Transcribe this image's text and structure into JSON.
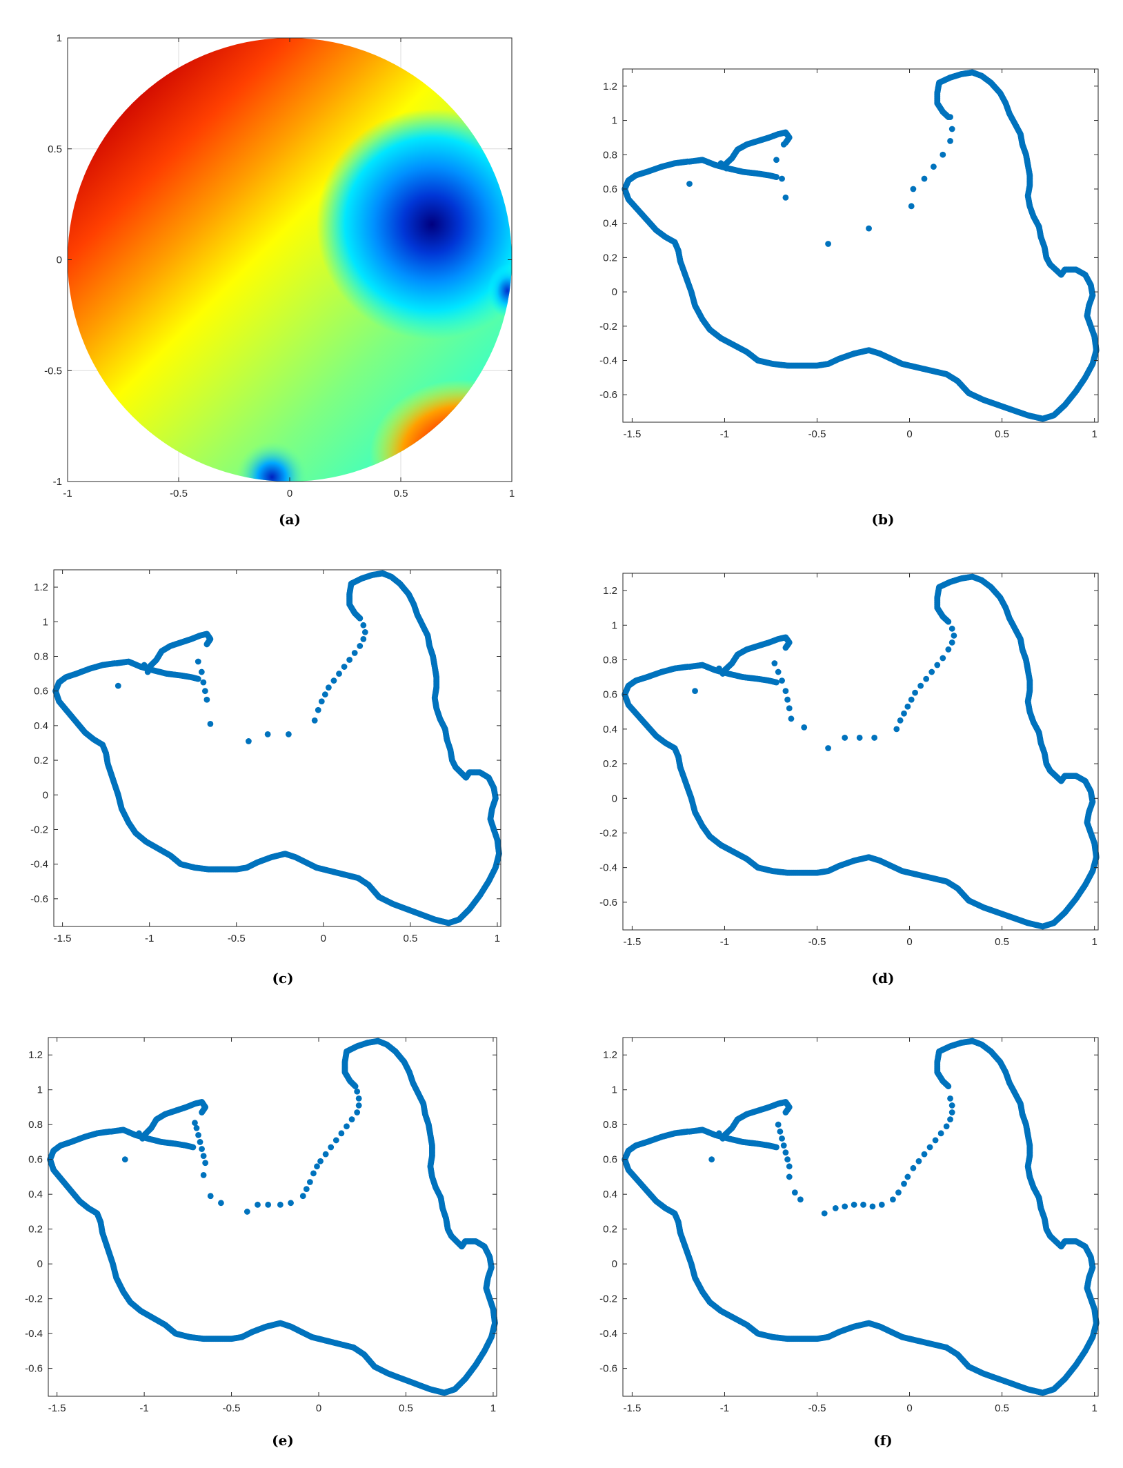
{
  "figure": {
    "panels": [
      "(a)",
      "(b)",
      "(c)",
      "(d)",
      "(e)",
      "(f)"
    ]
  },
  "colors": {
    "marker": "#0072bd",
    "frame": "#262626",
    "grid": "#dcdcdc"
  },
  "chart_data": [
    {
      "panel": "(a)",
      "type": "heatmap",
      "title": "",
      "xlabel": "",
      "ylabel": "",
      "domain": "unit disk",
      "colormap": "jet",
      "xlim": [
        -1,
        1
      ],
      "ylim": [
        -1,
        1
      ],
      "x_ticks": [
        -1,
        -0.5,
        0,
        0.5,
        1
      ],
      "y_ticks": [
        -1,
        -0.5,
        0,
        0.5,
        1
      ],
      "x_tick_labels": [
        "-1",
        "-0.5",
        "0",
        "0.5",
        "1"
      ],
      "y_tick_labels": [
        "-1",
        "-0.5",
        "0",
        "0.5",
        "1"
      ],
      "grid": true,
      "minimum": [
        0.64,
        0.16
      ],
      "boundary_features": [
        [
          -0.08,
          -0.98
        ],
        [
          0.98,
          -0.14
        ]
      ]
    },
    {
      "panel": "(b)",
      "type": "scatter",
      "title": "",
      "xlabel": "",
      "ylabel": "",
      "xlim": [
        -1.55,
        1.02
      ],
      "ylim": [
        -0.76,
        1.3
      ],
      "x_ticks": [
        -1.5,
        -1,
        -0.5,
        0,
        0.5,
        1
      ],
      "y_ticks": [
        -0.6,
        -0.4,
        -0.2,
        0,
        0.2,
        0.4,
        0.6,
        0.8,
        1,
        1.2
      ],
      "x_tick_labels": [
        "-1.5",
        "-1",
        "-0.5",
        "0",
        "0.5",
        "1"
      ],
      "y_tick_labels": [
        "-0.6",
        "-0.4",
        "-0.2",
        "0",
        "0.2",
        "0.4",
        "0.6",
        "0.8",
        "1",
        "1.2"
      ],
      "grid": false,
      "inner_points": [
        [
          -1.19,
          0.63
        ],
        [
          -1.02,
          0.75
        ],
        [
          -0.99,
          0.72
        ],
        [
          -0.72,
          0.77
        ],
        [
          -0.69,
          0.66
        ],
        [
          -0.67,
          0.55
        ],
        [
          -0.68,
          0.86
        ],
        [
          -0.44,
          0.28
        ],
        [
          -0.22,
          0.37
        ],
        [
          0.01,
          0.5
        ],
        [
          0.02,
          0.6
        ],
        [
          0.08,
          0.66
        ],
        [
          0.13,
          0.73
        ],
        [
          0.18,
          0.8
        ],
        [
          0.22,
          0.88
        ],
        [
          0.23,
          0.95
        ],
        [
          0.22,
          1.02
        ]
      ]
    },
    {
      "panel": "(c)",
      "type": "scatter",
      "title": "",
      "xlabel": "",
      "ylabel": "",
      "xlim": [
        -1.55,
        1.02
      ],
      "ylim": [
        -0.76,
        1.3
      ],
      "x_ticks": [
        -1.5,
        -1,
        -0.5,
        0,
        0.5,
        1
      ],
      "y_ticks": [
        -0.6,
        -0.4,
        -0.2,
        0,
        0.2,
        0.4,
        0.6,
        0.8,
        1,
        1.2
      ],
      "x_tick_labels": [
        "-1.5",
        "-1",
        "-0.5",
        "0",
        "0.5",
        "1"
      ],
      "y_tick_labels": [
        "-0.6",
        "-0.4",
        "-0.2",
        "0",
        "0.2",
        "0.4",
        "0.6",
        "0.8",
        "1",
        "1.2"
      ],
      "grid": false,
      "inner_points": [
        [
          -1.18,
          0.63
        ],
        [
          -1.03,
          0.75
        ],
        [
          -1.01,
          0.71
        ],
        [
          -0.72,
          0.77
        ],
        [
          -0.7,
          0.71
        ],
        [
          -0.69,
          0.65
        ],
        [
          -0.68,
          0.6
        ],
        [
          -0.67,
          0.55
        ],
        [
          -0.65,
          0.41
        ],
        [
          -0.43,
          0.31
        ],
        [
          -0.32,
          0.35
        ],
        [
          -0.2,
          0.35
        ],
        [
          -0.05,
          0.43
        ],
        [
          -0.03,
          0.49
        ],
        [
          -0.01,
          0.54
        ],
        [
          0.01,
          0.58
        ],
        [
          0.03,
          0.62
        ],
        [
          0.06,
          0.66
        ],
        [
          0.09,
          0.7
        ],
        [
          0.12,
          0.74
        ],
        [
          0.15,
          0.78
        ],
        [
          0.18,
          0.82
        ],
        [
          0.21,
          0.86
        ],
        [
          0.23,
          0.9
        ],
        [
          0.24,
          0.94
        ],
        [
          0.23,
          0.98
        ],
        [
          0.21,
          1.02
        ]
      ]
    },
    {
      "panel": "(d)",
      "type": "scatter",
      "title": "",
      "xlabel": "",
      "ylabel": "",
      "xlim": [
        -1.55,
        1.02
      ],
      "ylim": [
        -0.76,
        1.3
      ],
      "x_ticks": [
        -1.5,
        -1,
        -0.5,
        0,
        0.5,
        1
      ],
      "y_ticks": [
        -0.6,
        -0.4,
        -0.2,
        0,
        0.2,
        0.4,
        0.6,
        0.8,
        1,
        1.2
      ],
      "x_tick_labels": [
        "-1.5",
        "-1",
        "-0.5",
        "0",
        "0.5",
        "1"
      ],
      "y_tick_labels": [
        "-0.6",
        "-0.4",
        "-0.2",
        "0",
        "0.2",
        "0.4",
        "0.6",
        "0.8",
        "1",
        "1.2"
      ],
      "grid": false,
      "inner_points": [
        [
          -1.16,
          0.62
        ],
        [
          -1.03,
          0.75
        ],
        [
          -1.01,
          0.72
        ],
        [
          -0.73,
          0.78
        ],
        [
          -0.71,
          0.73
        ],
        [
          -0.69,
          0.68
        ],
        [
          -0.67,
          0.62
        ],
        [
          -0.66,
          0.57
        ],
        [
          -0.65,
          0.52
        ],
        [
          -0.64,
          0.46
        ],
        [
          -0.57,
          0.41
        ],
        [
          -0.44,
          0.29
        ],
        [
          -0.35,
          0.35
        ],
        [
          -0.27,
          0.35
        ],
        [
          -0.19,
          0.35
        ],
        [
          -0.07,
          0.4
        ],
        [
          -0.05,
          0.45
        ],
        [
          -0.03,
          0.49
        ],
        [
          -0.01,
          0.53
        ],
        [
          0.01,
          0.57
        ],
        [
          0.03,
          0.61
        ],
        [
          0.06,
          0.65
        ],
        [
          0.09,
          0.69
        ],
        [
          0.12,
          0.73
        ],
        [
          0.15,
          0.77
        ],
        [
          0.18,
          0.81
        ],
        [
          0.21,
          0.86
        ],
        [
          0.23,
          0.9
        ],
        [
          0.24,
          0.94
        ],
        [
          0.23,
          0.98
        ]
      ]
    },
    {
      "panel": "(e)",
      "type": "scatter",
      "title": "",
      "xlabel": "",
      "ylabel": "",
      "xlim": [
        -1.55,
        1.02
      ],
      "ylim": [
        -0.76,
        1.3
      ],
      "x_ticks": [
        -1.5,
        -1,
        -0.5,
        0,
        0.5,
        1
      ],
      "y_ticks": [
        -0.6,
        -0.4,
        -0.2,
        0,
        0.2,
        0.4,
        0.6,
        0.8,
        1,
        1.2
      ],
      "x_tick_labels": [
        "-1.5",
        "-1",
        "-0.5",
        "0",
        "0.5",
        "1"
      ],
      "y_tick_labels": [
        "-0.6",
        "-0.4",
        "-0.2",
        "0",
        "0.2",
        "0.4",
        "0.6",
        "0.8",
        "1",
        "1.2"
      ],
      "grid": false,
      "inner_points": [
        [
          -1.11,
          0.6
        ],
        [
          -1.03,
          0.75
        ],
        [
          -1.01,
          0.72
        ],
        [
          -0.71,
          0.81
        ],
        [
          -0.7,
          0.78
        ],
        [
          -0.69,
          0.74
        ],
        [
          -0.68,
          0.7
        ],
        [
          -0.67,
          0.66
        ],
        [
          -0.66,
          0.62
        ],
        [
          -0.65,
          0.58
        ],
        [
          -0.66,
          0.51
        ],
        [
          -0.62,
          0.39
        ],
        [
          -0.56,
          0.35
        ],
        [
          -0.41,
          0.3
        ],
        [
          -0.35,
          0.34
        ],
        [
          -0.29,
          0.34
        ],
        [
          -0.22,
          0.34
        ],
        [
          -0.16,
          0.35
        ],
        [
          -0.09,
          0.39
        ],
        [
          -0.07,
          0.43
        ],
        [
          -0.05,
          0.47
        ],
        [
          -0.03,
          0.52
        ],
        [
          -0.01,
          0.56
        ],
        [
          0.01,
          0.59
        ],
        [
          0.04,
          0.63
        ],
        [
          0.07,
          0.67
        ],
        [
          0.1,
          0.71
        ],
        [
          0.13,
          0.75
        ],
        [
          0.16,
          0.79
        ],
        [
          0.19,
          0.83
        ],
        [
          0.22,
          0.87
        ],
        [
          0.23,
          0.91
        ],
        [
          0.23,
          0.95
        ],
        [
          0.22,
          0.99
        ]
      ]
    },
    {
      "panel": "(f)",
      "type": "scatter",
      "title": "",
      "xlabel": "",
      "ylabel": "",
      "xlim": [
        -1.55,
        1.02
      ],
      "ylim": [
        -0.76,
        1.3
      ],
      "x_ticks": [
        -1.5,
        -1,
        -0.5,
        0,
        0.5,
        1
      ],
      "y_ticks": [
        -0.6,
        -0.4,
        -0.2,
        0,
        0.2,
        0.4,
        0.6,
        0.8,
        1,
        1.2
      ],
      "x_tick_labels": [
        "-1.5",
        "-1",
        "-0.5",
        "0",
        "0.5",
        "1"
      ],
      "y_tick_labels": [
        "-0.6",
        "-0.4",
        "-0.2",
        "0",
        "0.2",
        "0.4",
        "0.6",
        "0.8",
        "1",
        "1.2"
      ],
      "grid": false,
      "inner_points": [
        [
          -1.07,
          0.6
        ],
        [
          -1.03,
          0.75
        ],
        [
          -1.01,
          0.72
        ],
        [
          -0.71,
          0.8
        ],
        [
          -0.7,
          0.76
        ],
        [
          -0.69,
          0.72
        ],
        [
          -0.68,
          0.68
        ],
        [
          -0.67,
          0.64
        ],
        [
          -0.66,
          0.6
        ],
        [
          -0.65,
          0.56
        ],
        [
          -0.65,
          0.5
        ],
        [
          -0.62,
          0.41
        ],
        [
          -0.59,
          0.37
        ],
        [
          -0.46,
          0.29
        ],
        [
          -0.4,
          0.32
        ],
        [
          -0.35,
          0.33
        ],
        [
          -0.3,
          0.34
        ],
        [
          -0.25,
          0.34
        ],
        [
          -0.2,
          0.33
        ],
        [
          -0.15,
          0.34
        ],
        [
          -0.09,
          0.37
        ],
        [
          -0.06,
          0.41
        ],
        [
          -0.03,
          0.46
        ],
        [
          -0.01,
          0.5
        ],
        [
          0.02,
          0.55
        ],
        [
          0.05,
          0.59
        ],
        [
          0.08,
          0.63
        ],
        [
          0.11,
          0.67
        ],
        [
          0.14,
          0.71
        ],
        [
          0.17,
          0.75
        ],
        [
          0.2,
          0.79
        ],
        [
          0.22,
          0.83
        ],
        [
          0.23,
          0.87
        ],
        [
          0.23,
          0.91
        ],
        [
          0.22,
          0.95
        ]
      ]
    }
  ],
  "outline": {
    "left_arm": [
      [
        -1.19,
        0.76
      ],
      [
        -1.12,
        0.77
      ],
      [
        -1.05,
        0.74
      ],
      [
        -0.98,
        0.72
      ],
      [
        -0.9,
        0.7
      ],
      [
        -0.82,
        0.69
      ],
      [
        -0.76,
        0.68
      ],
      [
        -0.72,
        0.67
      ]
    ],
    "middle_arm": [
      [
        -1.0,
        0.74
      ],
      [
        -0.96,
        0.78
      ],
      [
        -0.93,
        0.83
      ],
      [
        -0.88,
        0.86
      ],
      [
        -0.82,
        0.88
      ],
      [
        -0.76,
        0.9
      ],
      [
        -0.71,
        0.92
      ],
      [
        -0.67,
        0.93
      ],
      [
        -0.65,
        0.9
      ],
      [
        -0.67,
        0.87
      ]
    ],
    "main_loop": [
      [
        -1.2,
        0.76
      ],
      [
        -1.27,
        0.75
      ],
      [
        -1.34,
        0.73
      ],
      [
        -1.42,
        0.7
      ],
      [
        -1.48,
        0.68
      ],
      [
        -1.52,
        0.65
      ],
      [
        -1.54,
        0.6
      ],
      [
        -1.52,
        0.54
      ],
      [
        -1.47,
        0.48
      ],
      [
        -1.42,
        0.42
      ],
      [
        -1.37,
        0.36
      ],
      [
        -1.32,
        0.32
      ],
      [
        -1.27,
        0.29
      ],
      [
        -1.25,
        0.24
      ],
      [
        -1.24,
        0.18
      ],
      [
        -1.22,
        0.12
      ],
      [
        -1.2,
        0.06
      ],
      [
        -1.18,
        0.0
      ],
      [
        -1.16,
        -0.08
      ],
      [
        -1.12,
        -0.16
      ],
      [
        -1.08,
        -0.22
      ],
      [
        -1.02,
        -0.27
      ],
      [
        -0.95,
        -0.31
      ],
      [
        -0.88,
        -0.35
      ],
      [
        -0.82,
        -0.4
      ],
      [
        -0.74,
        -0.42
      ],
      [
        -0.66,
        -0.43
      ],
      [
        -0.58,
        -0.43
      ],
      [
        -0.5,
        -0.43
      ],
      [
        -0.44,
        -0.42
      ],
      [
        -0.38,
        -0.39
      ],
      [
        -0.3,
        -0.36
      ],
      [
        -0.22,
        -0.34
      ],
      [
        -0.16,
        -0.36
      ],
      [
        -0.1,
        -0.39
      ],
      [
        -0.04,
        -0.42
      ],
      [
        0.04,
        -0.44
      ],
      [
        0.12,
        -0.46
      ],
      [
        0.2,
        -0.48
      ],
      [
        0.26,
        -0.52
      ],
      [
        0.32,
        -0.59
      ],
      [
        0.4,
        -0.63
      ],
      [
        0.48,
        -0.66
      ],
      [
        0.56,
        -0.69
      ],
      [
        0.64,
        -0.72
      ],
      [
        0.72,
        -0.74
      ],
      [
        0.78,
        -0.72
      ],
      [
        0.84,
        -0.66
      ],
      [
        0.9,
        -0.58
      ],
      [
        0.95,
        -0.5
      ],
      [
        0.99,
        -0.42
      ],
      [
        1.01,
        -0.34
      ],
      [
        1.0,
        -0.26
      ],
      [
        0.98,
        -0.2
      ],
      [
        0.96,
        -0.14
      ],
      [
        0.97,
        -0.08
      ],
      [
        0.99,
        -0.02
      ],
      [
        0.98,
        0.04
      ],
      [
        0.95,
        0.1
      ],
      [
        0.9,
        0.13
      ],
      [
        0.84,
        0.13
      ],
      [
        0.82,
        0.1
      ],
      [
        0.8,
        0.12
      ],
      [
        0.76,
        0.16
      ],
      [
        0.74,
        0.2
      ],
      [
        0.73,
        0.26
      ],
      [
        0.71,
        0.32
      ],
      [
        0.7,
        0.38
      ],
      [
        0.67,
        0.44
      ],
      [
        0.65,
        0.5
      ],
      [
        0.64,
        0.56
      ],
      [
        0.65,
        0.62
      ],
      [
        0.65,
        0.68
      ],
      [
        0.64,
        0.74
      ],
      [
        0.63,
        0.8
      ],
      [
        0.61,
        0.86
      ],
      [
        0.6,
        0.92
      ],
      [
        0.57,
        0.98
      ],
      [
        0.54,
        1.04
      ],
      [
        0.52,
        1.1
      ],
      [
        0.49,
        1.16
      ],
      [
        0.44,
        1.22
      ],
      [
        0.39,
        1.26
      ],
      [
        0.34,
        1.28
      ],
      [
        0.28,
        1.27
      ],
      [
        0.22,
        1.25
      ],
      [
        0.16,
        1.22
      ],
      [
        0.15,
        1.16
      ],
      [
        0.15,
        1.1
      ],
      [
        0.18,
        1.05
      ],
      [
        0.21,
        1.02
      ]
    ]
  }
}
